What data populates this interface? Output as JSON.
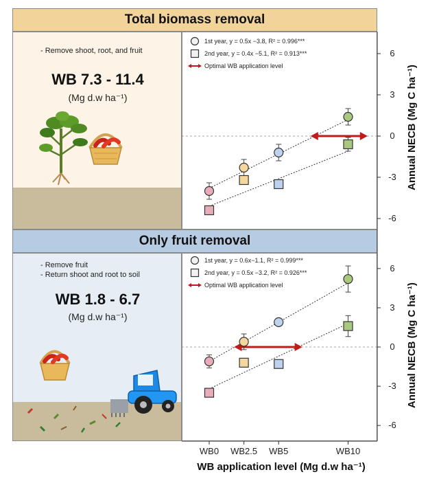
{
  "panels": [
    {
      "title": "Total biomass removal",
      "notes": [
        "- Remove shoot, root, and fruit"
      ],
      "wb_range": "WB 7.3 - 11.4",
      "wb_unit": "(Mg d.w ha⁻¹)",
      "legend": {
        "series1": "1st year, y = 0.5x −3.8, R² = 0.996***",
        "series2": "2nd year, y = 0.4x −5.1, R² = 0.913***",
        "arrow": "Optimal WB application level"
      }
    },
    {
      "title": "Only fruit removal",
      "notes": [
        "- Remove fruit",
        "- Return shoot and root to soil"
      ],
      "wb_range": "WB 1.8 - 6.7",
      "wb_unit": "(Mg d.w ha⁻¹)",
      "legend": {
        "series1": "1st year, y = 0.6x−1.1, R² = 0.999***",
        "series2": "2nd year, y = 0.5x −3.2, R² = 0.926***",
        "arrow": "Optimal WB application level"
      }
    }
  ],
  "xlabel": "WB application level (Mg d.w ha⁻¹)",
  "ylabel": "Annual NECB (Mg C ha⁻¹)",
  "chart_data": [
    {
      "type": "scatter",
      "title": "Total biomass removal",
      "categories": [
        "WB0",
        "WB2.5",
        "WB5",
        "WB10"
      ],
      "x": [
        0,
        2.5,
        5,
        10
      ],
      "ylim": [
        -6.8,
        7.6
      ],
      "yticks": [
        -6,
        -3,
        0,
        3,
        6
      ],
      "series": [
        {
          "name": "1st year",
          "marker": "circle",
          "y": [
            -4.0,
            -2.3,
            -1.2,
            1.4
          ],
          "err": [
            0.6,
            0.6,
            0.6,
            0.6
          ],
          "fit": {
            "slope": 0.5,
            "intercept": -3.8
          }
        },
        {
          "name": "2nd year",
          "marker": "square",
          "y": [
            -5.4,
            -3.2,
            -3.5,
            -0.6
          ],
          "err": [
            0,
            0,
            0,
            0.5
          ],
          "fit": {
            "slope": 0.4,
            "intercept": -5.1
          }
        }
      ],
      "optimal_range": [
        7.3,
        11.4
      ],
      "marker_colors": [
        "#e7aeb9",
        "#f5d79e",
        "#bdd3ed",
        "#a9c97f"
      ],
      "arrow_color": "#c01a1a"
    },
    {
      "type": "scatter",
      "title": "Only fruit removal",
      "categories": [
        "WB0",
        "WB2.5",
        "WB5",
        "WB10"
      ],
      "x": [
        0,
        2.5,
        5,
        10
      ],
      "ylim": [
        -7.2,
        7.2
      ],
      "yticks": [
        -6,
        -3,
        0,
        3,
        6
      ],
      "series": [
        {
          "name": "1st year",
          "marker": "circle",
          "y": [
            -1.1,
            0.4,
            1.9,
            5.2
          ],
          "err": [
            0.5,
            0.6,
            0,
            1.0
          ],
          "fit": {
            "slope": 0.6,
            "intercept": -1.1
          }
        },
        {
          "name": "2nd year",
          "marker": "square",
          "y": [
            -3.5,
            -1.2,
            -1.3,
            1.6
          ],
          "err": [
            0.3,
            0,
            0,
            0.8
          ],
          "fit": {
            "slope": 0.5,
            "intercept": -3.2
          }
        }
      ],
      "optimal_range": [
        1.8,
        6.7
      ],
      "marker_colors": [
        "#e7aeb9",
        "#f5d79e",
        "#bdd3ed",
        "#a9c97f"
      ],
      "arrow_color": "#c01a1a"
    }
  ]
}
